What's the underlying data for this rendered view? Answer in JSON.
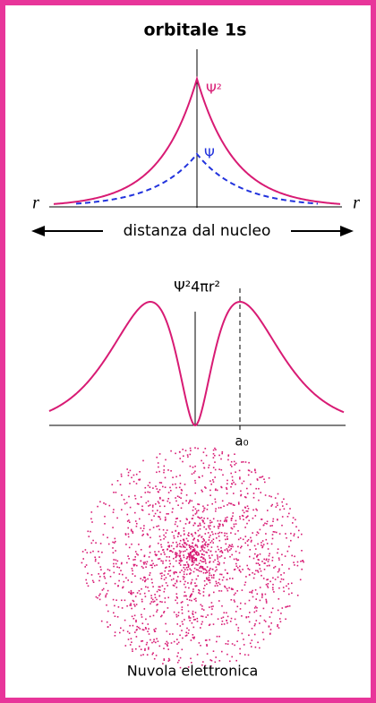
{
  "title": "orbitale 1s",
  "wavefunction_plot": {
    "psi_squared_label": "Ψ²",
    "psi_label": "Ψ",
    "r_left": "r",
    "r_right": "r",
    "axis_label": "distanza dal nucleo"
  },
  "radial_plot": {
    "y_label": "Ψ²4πr²",
    "a0_label": "a₀"
  },
  "cloud": {
    "caption": "Nuvola elettronica"
  }
}
